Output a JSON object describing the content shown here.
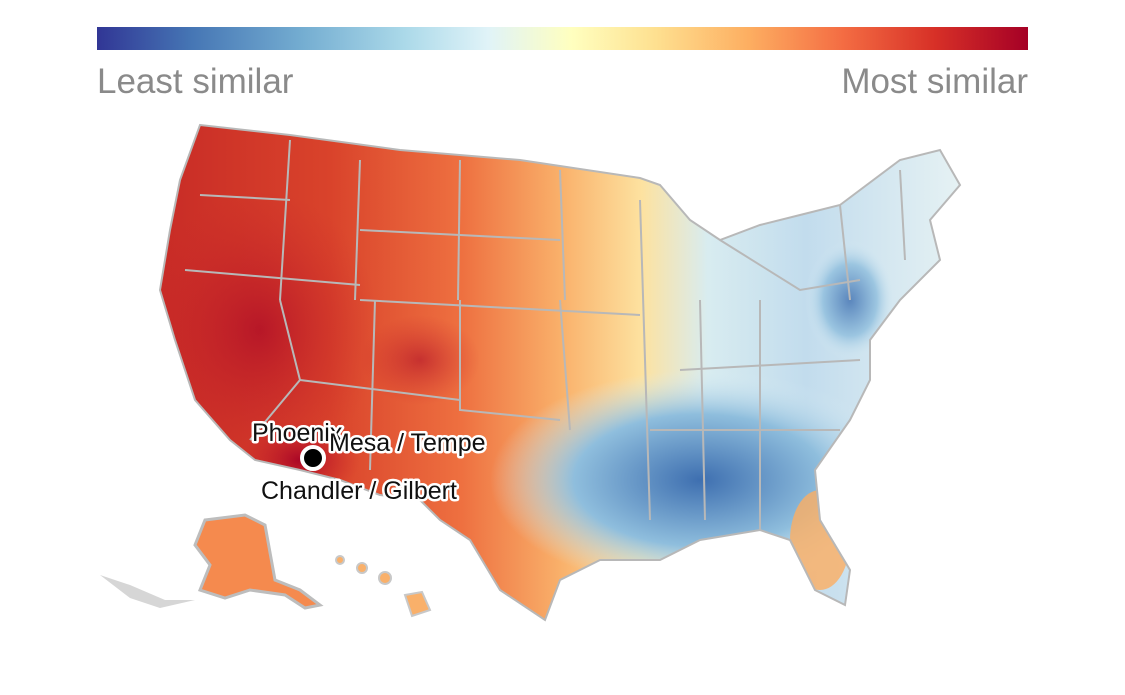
{
  "legend": {
    "min_label": "Least similar",
    "max_label": "Most similar",
    "colors": [
      "#313695",
      "#4575b4",
      "#74add1",
      "#abd9e9",
      "#e0f3f8",
      "#ffffbf",
      "#fee090",
      "#fdae61",
      "#f46d43",
      "#d73027",
      "#a50026"
    ]
  },
  "map": {
    "region": "United States",
    "border_color": "#b8b8b8",
    "cities": [
      {
        "label": "Phoenix"
      },
      {
        "label": "Mesa / Tempe"
      },
      {
        "label": "Chandler / Gilbert"
      }
    ]
  }
}
